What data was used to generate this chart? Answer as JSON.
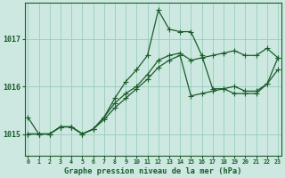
{
  "title": "Graphe pression niveau de la mer (hPa)",
  "hours": [
    0,
    1,
    2,
    3,
    4,
    5,
    6,
    7,
    8,
    9,
    10,
    11,
    12,
    13,
    14,
    15,
    16,
    17,
    18,
    19,
    20,
    21,
    22,
    23
  ],
  "yticks": [
    1015,
    1016,
    1017
  ],
  "ylim": [
    1014.55,
    1017.75
  ],
  "xlim": [
    -0.3,
    23.3
  ],
  "bg_color": "#cce8e0",
  "grid_color": "#99ccbb",
  "line_color": "#1a5c2a",
  "series1": [
    1015.0,
    1015.0,
    1015.0,
    1015.15,
    1015.15,
    1015.0,
    1015.1,
    1015.3,
    1015.55,
    1015.75,
    1015.95,
    1016.15,
    1016.4,
    1016.55,
    1016.65,
    1015.8,
    1015.85,
    1015.9,
    1015.95,
    1016.0,
    1015.9,
    1015.9,
    1016.05,
    1016.35
  ],
  "series2": [
    1015.35,
    1015.0,
    1015.0,
    1015.15,
    1015.15,
    1015.0,
    1015.1,
    1015.35,
    1015.65,
    1015.85,
    1016.0,
    1016.25,
    1016.55,
    1016.65,
    1016.7,
    1016.55,
    1016.6,
    1016.65,
    1016.7,
    1016.75,
    1016.65,
    1016.65,
    1016.8,
    1016.6
  ],
  "series3": [
    1015.0,
    1015.0,
    1015.0,
    1015.15,
    1015.15,
    1015.0,
    1015.1,
    1015.35,
    1015.75,
    1016.1,
    1016.35,
    1016.65,
    1017.6,
    1017.2,
    1017.15,
    1017.15,
    1016.65,
    1015.95,
    1015.95,
    1015.85,
    1015.85,
    1015.85,
    1016.05,
    1016.6
  ],
  "marker": "+",
  "markersize": 4,
  "linewidth": 0.9
}
